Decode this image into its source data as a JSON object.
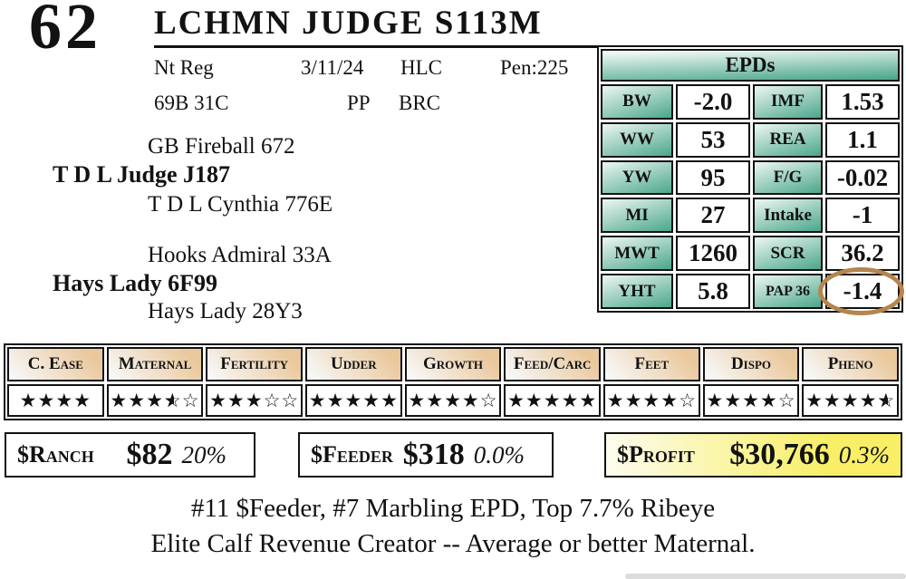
{
  "lot": {
    "number": "62",
    "name": "LCHMN JUDGE S113M"
  },
  "info": {
    "reg": "Nt Reg",
    "date": "3/11/24",
    "location": "HLC",
    "pen": "Pen:225",
    "tattoo": "69B 31C",
    "horn": "PP",
    "breeder": "BRC"
  },
  "pedigree": {
    "sire_sire": "GB Fireball 672",
    "sire": "T D L Judge J187",
    "sire_dam": "T D L Cynthia 776E",
    "dam_sire": "Hooks Admiral 33A",
    "dam": "Hays Lady 6F99",
    "dam_dam": "Hays Lady 28Y3"
  },
  "epds": {
    "title": "EPDs",
    "rows": [
      {
        "label1": "BW",
        "value1": "-2.0",
        "label2": "IMF",
        "value2": "1.53"
      },
      {
        "label1": "WW",
        "value1": "53",
        "label2": "REA",
        "value2": "1.1"
      },
      {
        "label1": "YW",
        "value1": "95",
        "label2": "F/G",
        "value2": "-0.02"
      },
      {
        "label1": "MI",
        "value1": "27",
        "label2": "Intake",
        "value2": "-1"
      },
      {
        "label1": "MWT",
        "value1": "1260",
        "label2": "SCR",
        "value2": "36.2"
      },
      {
        "label1": "YHT",
        "value1": "5.8",
        "label2": "PAP 36",
        "value2": "-1.4"
      }
    ],
    "highlighted_value": "-1.4"
  },
  "traits": [
    {
      "label": "C. Ease",
      "stars": {
        "full": 4,
        "half": 0,
        "empty": 0
      }
    },
    {
      "label": "Maternal",
      "stars": {
        "full": 3,
        "half": 1,
        "empty": 1
      }
    },
    {
      "label": "Fertility",
      "stars": {
        "full": 3,
        "half": 0,
        "empty": 2
      }
    },
    {
      "label": "Udder",
      "stars": {
        "full": 5,
        "half": 0,
        "empty": 0
      }
    },
    {
      "label": "Growth",
      "stars": {
        "full": 4,
        "half": 0,
        "empty": 1
      }
    },
    {
      "label": "Feed/Carc",
      "stars": {
        "full": 5,
        "half": 0,
        "empty": 0
      }
    },
    {
      "label": "Feet",
      "stars": {
        "full": 4,
        "half": 0,
        "empty": 1
      }
    },
    {
      "label": "Dispo",
      "stars": {
        "full": 4,
        "half": 0,
        "empty": 1
      }
    },
    {
      "label": "Pheno",
      "stars": {
        "full": 4,
        "half": 1,
        "empty": 0
      }
    }
  ],
  "values": [
    {
      "label": "$Ranch",
      "amount": "$82",
      "pct": "20%"
    },
    {
      "label": "$Feeder",
      "amount": "$318",
      "pct": "0.0%"
    },
    {
      "label": "$Profit",
      "amount": "$30,766",
      "pct": "0.3%"
    }
  ],
  "notes": [
    "#11 $Feeder, #7 Marbling EPD, Top 7.7% Ribeye",
    "Elite Calf Revenue Creator -- Average or better Maternal."
  ],
  "colors": {
    "epd_green": "#4fa88e",
    "trait_tan": "#eac89c",
    "profit_yellow": "#f8ef67",
    "circle_brown": "#b5854e"
  }
}
